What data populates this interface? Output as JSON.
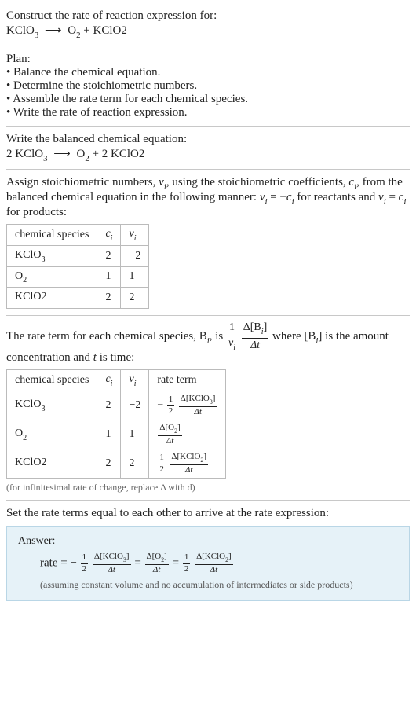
{
  "prompt": {
    "line1": "Construct the rate of reaction expression for:",
    "reaction_lhs": "KClO",
    "reaction_lhs_sub": "3",
    "arrow": "⟶",
    "rhs_1": "O",
    "rhs_1_sub": "2",
    "plus": " + ",
    "rhs_2": "KClO2"
  },
  "plan": {
    "heading": "Plan:",
    "b1": "• Balance the chemical equation.",
    "b2": "• Determine the stoichiometric numbers.",
    "b3": "• Assemble the rate term for each chemical species.",
    "b4": "• Write the rate of reaction expression."
  },
  "balanced": {
    "heading": "Write the balanced chemical equation:",
    "c1": "2 KClO",
    "c1_sub": "3",
    "arrow": "⟶",
    "c2": "O",
    "c2_sub": "2",
    "plus": " + ",
    "c3": "2 KClO2"
  },
  "assign": {
    "text_a": "Assign stoichiometric numbers, ",
    "nu": "ν",
    "i": "i",
    "text_b": ", using the stoichiometric coefficients, ",
    "c": "c",
    "text_c": ", from the balanced chemical equation in the following manner: ",
    "eq1_lhs": "ν",
    "eq1_eq": " = −",
    "eq1_rhs": "c",
    "text_d": " for reactants and ",
    "eq2_lhs": "ν",
    "eq2_eq": " = ",
    "eq2_rhs": "c",
    "text_e": " for products:"
  },
  "table1": {
    "h1": "chemical species",
    "h2": "c",
    "h3": "ν",
    "rows": [
      {
        "sp_a": "KClO",
        "sp_sub": "3",
        "c": "2",
        "nu": "−2"
      },
      {
        "sp_a": "O",
        "sp_sub": "2",
        "c": "1",
        "nu": "1"
      },
      {
        "sp_a": "KClO2",
        "sp_sub": "",
        "c": "2",
        "nu": "2"
      }
    ]
  },
  "rateterm": {
    "text_a": "The rate term for each chemical species, B",
    "text_b": ", is ",
    "one": "1",
    "nu": "ν",
    "i": "i",
    "dB_num_a": "Δ[B",
    "dB_num_b": "]",
    "dt": "Δt",
    "text_c": " where [B",
    "text_d": "] is the amount concentration and ",
    "t": "t",
    "text_e": " is time:"
  },
  "table2": {
    "h1": "chemical species",
    "h2": "c",
    "h3": "ν",
    "h4": "rate term",
    "rows": [
      {
        "sp_a": "KClO",
        "sp_sub": "3",
        "c": "2",
        "nu": "−2",
        "coef_sign": "−",
        "coef_num": "1",
        "coef_den": "2",
        "conc_a": "Δ[KClO",
        "conc_sub": "3",
        "conc_b": "]",
        "dt": "Δt"
      },
      {
        "sp_a": "O",
        "sp_sub": "2",
        "c": "1",
        "nu": "1",
        "coef_sign": "",
        "coef_num": "",
        "coef_den": "",
        "conc_a": "Δ[O",
        "conc_sub": "2",
        "conc_b": "]",
        "dt": "Δt"
      },
      {
        "sp_a": "KClO2",
        "sp_sub": "",
        "c": "2",
        "nu": "2",
        "coef_sign": "",
        "coef_num": "1",
        "coef_den": "2",
        "conc_a": "Δ[KClO",
        "conc_sub": "2",
        "conc_b": "]",
        "dt": "Δt"
      }
    ],
    "caption": "(for infinitesimal rate of change, replace Δ with d)"
  },
  "final": {
    "heading": "Set the rate terms equal to each other to arrive at the rate expression:"
  },
  "answer": {
    "label": "Answer:",
    "rate": "rate = ",
    "t1_sign": "−",
    "t1_num": "1",
    "t1_den": "2",
    "t1_conc_a": "Δ[KClO",
    "t1_conc_sub": "3",
    "t1_conc_b": "]",
    "dt": "Δt",
    "eq": " = ",
    "t2_conc_a": "Δ[O",
    "t2_conc_sub": "2",
    "t2_conc_b": "]",
    "t3_num": "1",
    "t3_den": "2",
    "t3_conc_a": "Δ[KClO",
    "t3_conc_sub": "2",
    "t3_conc_b": "]",
    "note": "(assuming constant volume and no accumulation of intermediates or side products)"
  }
}
